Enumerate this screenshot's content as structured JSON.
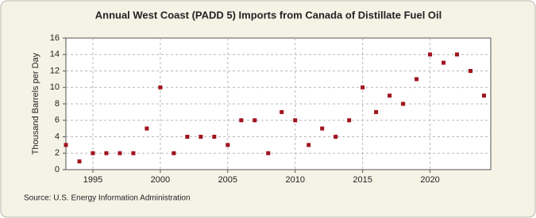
{
  "chart_data": {
    "type": "scatter",
    "title": "Annual West Coast (PADD 5) Imports from Canada of Distillate Fuel Oil",
    "y_label": "Thousand Barrels per Day",
    "source": "Source: U.S. Energy Information Administration",
    "x": [
      1993,
      1994,
      1995,
      1996,
      1997,
      1998,
      1999,
      2000,
      2001,
      2002,
      2003,
      2004,
      2005,
      2006,
      2007,
      2008,
      2009,
      2010,
      2011,
      2012,
      2013,
      2014,
      2015,
      2016,
      2017,
      2018,
      2019,
      2020,
      2021,
      2022,
      2023,
      2024
    ],
    "values": [
      3,
      1,
      2,
      2,
      2,
      2,
      5,
      10,
      2,
      4,
      4,
      4,
      3,
      6,
      6,
      2,
      7,
      6,
      3,
      5,
      4,
      6,
      10,
      7,
      9,
      8,
      11,
      14,
      13,
      14,
      12,
      9
    ],
    "color": "#a0141e",
    "xlim": [
      1993,
      2024.5
    ],
    "xticks": [
      1995,
      2000,
      2005,
      2010,
      2015,
      2020
    ],
    "ylim": [
      0,
      16
    ],
    "yticks": [
      0,
      2,
      4,
      6,
      8,
      10,
      12,
      14,
      16
    ],
    "grid": true
  }
}
